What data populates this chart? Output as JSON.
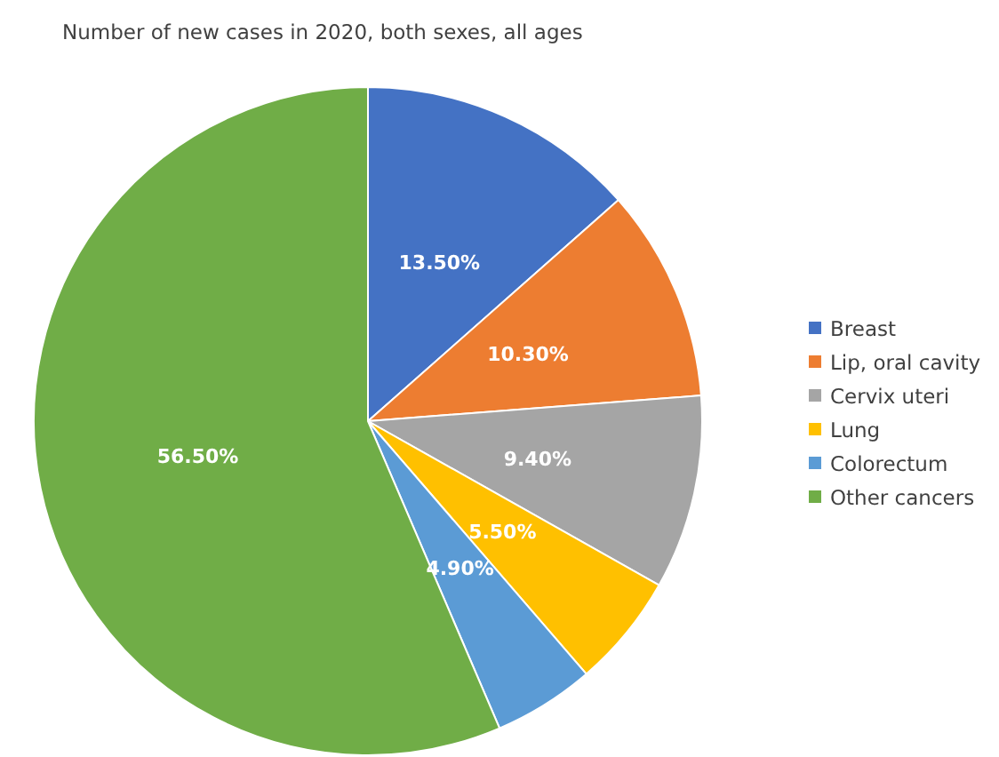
{
  "chart_data": {
    "type": "pie",
    "title": "Number of new cases in 2020, both sexes, all ages",
    "categories": [
      "Breast",
      "Lip, oral cavity",
      "Cervix uteri",
      "Lung",
      "Colorectum",
      "Other cancers"
    ],
    "values": [
      13.5,
      10.3,
      9.4,
      5.5,
      4.9,
      56.5
    ],
    "colors": [
      "#4472c4",
      "#ed7d31",
      "#a5a5a5",
      "#ffc000",
      "#5b9bd5",
      "#70ad47"
    ],
    "value_labels": [
      "13.50%",
      "10.30%",
      "9.40%",
      "5.50%",
      "4.90%",
      "56.50%"
    ],
    "legend": "right"
  }
}
